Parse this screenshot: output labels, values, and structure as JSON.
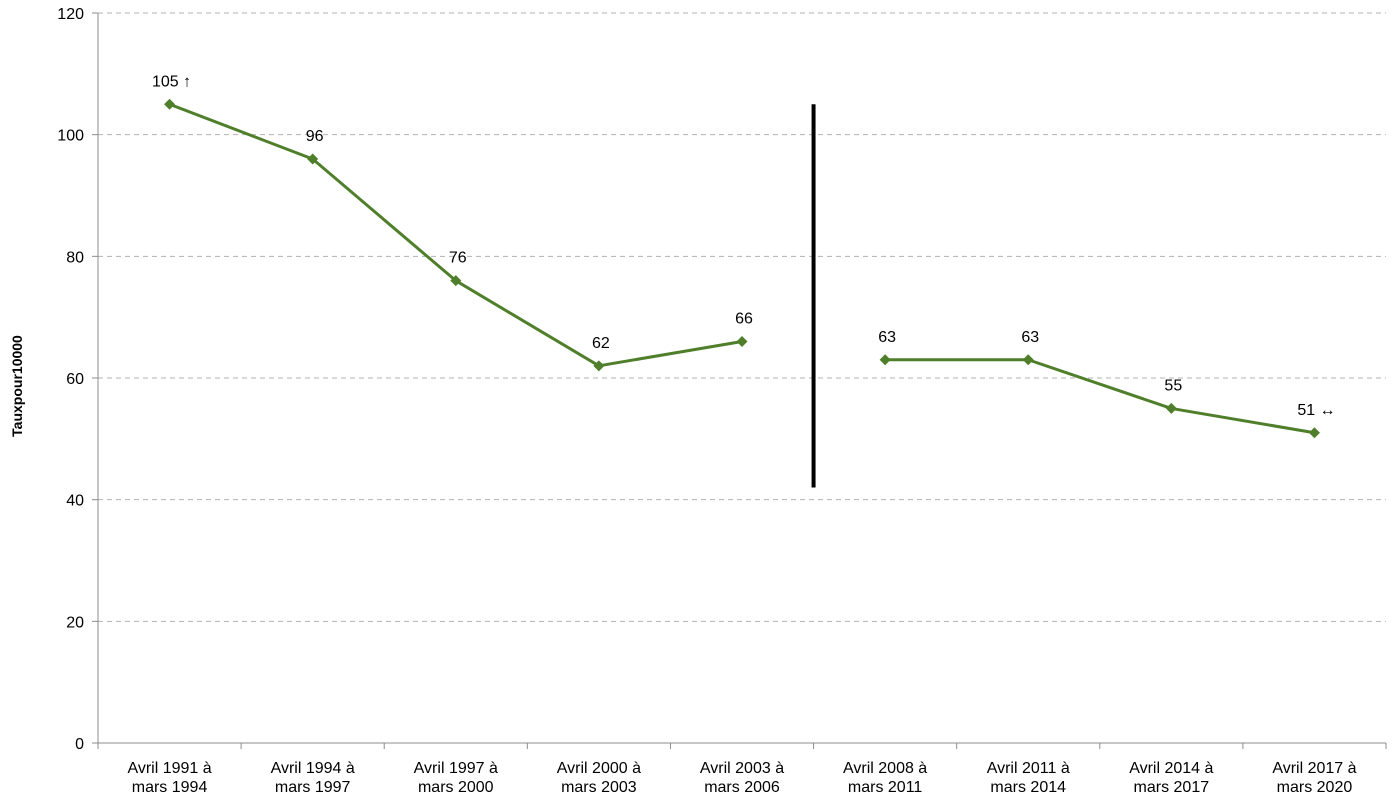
{
  "chart_data": {
    "type": "line",
    "title": "",
    "xlabel": "",
    "ylabel": "Tauxpour10000",
    "ylim": [
      0,
      120
    ],
    "yticks": [
      0,
      20,
      40,
      60,
      80,
      100,
      120
    ],
    "grid": true,
    "legend": "none",
    "categories": [
      [
        "Avril 1991 à",
        "mars 1994"
      ],
      [
        "Avril 1994 à",
        "mars 1997"
      ],
      [
        "Avril 1997 à",
        "mars 2000"
      ],
      [
        "Avril 2000 à",
        "mars 2003"
      ],
      [
        "Avril 2003 à",
        "mars 2006"
      ],
      [
        "Avril 2008 à",
        "mars 2011"
      ],
      [
        "Avril 2011 à",
        "mars 2014"
      ],
      [
        "Avril 2014 à",
        "mars 2017"
      ],
      [
        "Avril 2017 à",
        "mars 2020"
      ]
    ],
    "segments": [
      {
        "indices": [
          0,
          1,
          2,
          3,
          4
        ],
        "values": [
          105,
          96,
          76,
          62,
          66
        ]
      },
      {
        "indices": [
          5,
          6,
          7,
          8
        ],
        "values": [
          63,
          63,
          55,
          51
        ]
      }
    ],
    "data_labels": [
      "105 ↑",
      "96",
      "76",
      "62",
      "66",
      "63",
      "63",
      "55",
      "51 ↔"
    ],
    "break_between": [
      4,
      5
    ],
    "break_line_range": [
      42,
      105
    ],
    "colors": {
      "series": "#4f7f2a",
      "grid": "#b3b3b3",
      "axis": "#8c8c8c",
      "break": "#000000"
    }
  }
}
